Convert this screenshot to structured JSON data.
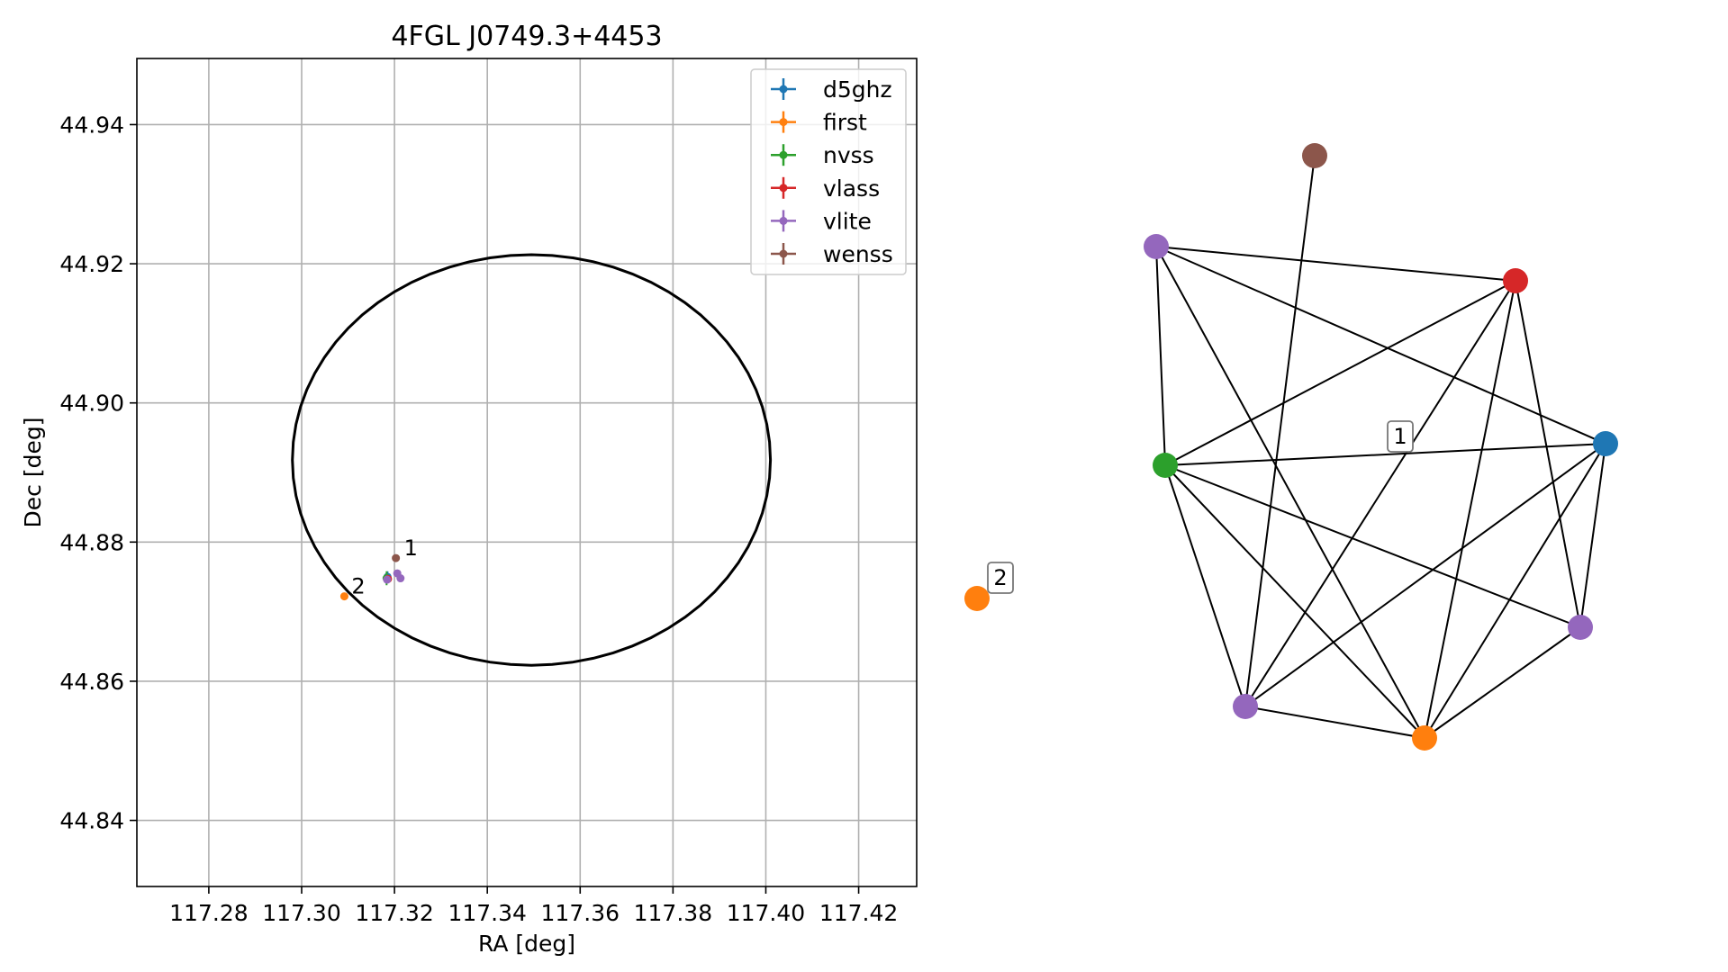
{
  "chart_data": [
    {
      "type": "scatter",
      "title": "4FGL J0749.3+4453",
      "xlabel": "RA [deg]",
      "ylabel": "Dec [deg]",
      "xlim": [
        117.2645,
        117.4325
      ],
      "ylim": [
        44.8305,
        44.9495
      ],
      "xticks": [
        {
          "v": 117.28,
          "label": "117.28"
        },
        {
          "v": 117.3,
          "label": "117.30"
        },
        {
          "v": 117.32,
          "label": "117.32"
        },
        {
          "v": 117.34,
          "label": "117.34"
        },
        {
          "v": 117.36,
          "label": "117.36"
        },
        {
          "v": 117.38,
          "label": "117.38"
        },
        {
          "v": 117.4,
          "label": "117.40"
        },
        {
          "v": 117.42,
          "label": "117.42"
        }
      ],
      "yticks": [
        {
          "v": 44.84,
          "label": "44.84"
        },
        {
          "v": 44.86,
          "label": "44.86"
        },
        {
          "v": 44.88,
          "label": "44.88"
        },
        {
          "v": 44.9,
          "label": "44.90"
        },
        {
          "v": 44.92,
          "label": "44.92"
        },
        {
          "v": 44.94,
          "label": "44.94"
        }
      ],
      "grid": true,
      "legend_position": "top-right",
      "ellipse": {
        "center": [
          117.3495,
          44.8918
        ],
        "ra_halfwidth": 0.0515,
        "dec_halfheight": 0.0295
      },
      "series": [
        {
          "name": "d5ghz",
          "color": "#1f77b4",
          "points": [
            {
              "x": 117.3185,
              "y": 44.875,
              "xerr": 0.0003,
              "yerr": 0.0008
            }
          ]
        },
        {
          "name": "first",
          "color": "#ff7f0e",
          "points": [
            {
              "x": 117.3092,
              "y": 44.8722,
              "xerr": 0.0002,
              "yerr": 0.0002
            }
          ]
        },
        {
          "name": "nvss",
          "color": "#2ca02c",
          "points": [
            {
              "x": 117.3183,
              "y": 44.8748,
              "xerr": 0.0004,
              "yerr": 0.001
            }
          ]
        },
        {
          "name": "vlass",
          "color": "#d62728",
          "points": [
            {
              "x": 117.3186,
              "y": 44.8747,
              "xerr": 0.0001,
              "yerr": 0.0002
            }
          ]
        },
        {
          "name": "vlite",
          "color": "#9467bd",
          "points": [
            {
              "x": 117.3206,
              "y": 44.8755,
              "xerr": 0.0002,
              "yerr": 0.0003
            },
            {
              "x": 117.3213,
              "y": 44.8748,
              "xerr": 0.0002,
              "yerr": 0.0002
            },
            {
              "x": 117.3184,
              "y": 44.8746,
              "xerr": 0.0002,
              "yerr": 0.0003
            }
          ]
        },
        {
          "name": "wenss",
          "color": "#8c564b",
          "points": [
            {
              "x": 117.3203,
              "y": 44.8777,
              "xerr": 0.0001,
              "yerr": 0.0001
            }
          ]
        }
      ],
      "annotations": [
        {
          "text": "1",
          "x": 117.3205,
          "y": 44.8777
        },
        {
          "text": "2",
          "x": 117.3092,
          "y": 44.8722
        }
      ]
    },
    {
      "type": "network",
      "nodes": [
        {
          "id": "wenss",
          "color": "#8c564b"
        },
        {
          "id": "vlite_a",
          "color": "#9467bd"
        },
        {
          "id": "vlass",
          "color": "#d62728"
        },
        {
          "id": "d5ghz",
          "color": "#1f77b4"
        },
        {
          "id": "nvss",
          "color": "#2ca02c"
        },
        {
          "id": "vlite_b",
          "color": "#9467bd"
        },
        {
          "id": "vlite_c",
          "color": "#9467bd"
        },
        {
          "id": "first_a",
          "color": "#ff7f0e"
        },
        {
          "id": "first_b",
          "color": "#ff7f0e"
        }
      ],
      "edges": [
        [
          "vlite_a",
          "vlass"
        ],
        [
          "vlite_a",
          "d5ghz"
        ],
        [
          "vlite_a",
          "nvss"
        ],
        [
          "vlite_a",
          "first_a"
        ],
        [
          "vlass",
          "nvss"
        ],
        [
          "vlass",
          "vlite_c"
        ],
        [
          "vlass",
          "first_a"
        ],
        [
          "vlass",
          "vlite_b"
        ],
        [
          "d5ghz",
          "nvss"
        ],
        [
          "d5ghz",
          "vlite_c"
        ],
        [
          "d5ghz",
          "first_a"
        ],
        [
          "d5ghz",
          "vlite_b"
        ],
        [
          "nvss",
          "vlite_c"
        ],
        [
          "nvss",
          "first_a"
        ],
        [
          "nvss",
          "vlite_b"
        ],
        [
          "vlite_c",
          "first_a"
        ],
        [
          "first_a",
          "vlite_b"
        ],
        [
          "wenss",
          "vlite_c"
        ]
      ],
      "labels": [
        {
          "text": "1"
        },
        {
          "text": "2"
        }
      ]
    }
  ]
}
